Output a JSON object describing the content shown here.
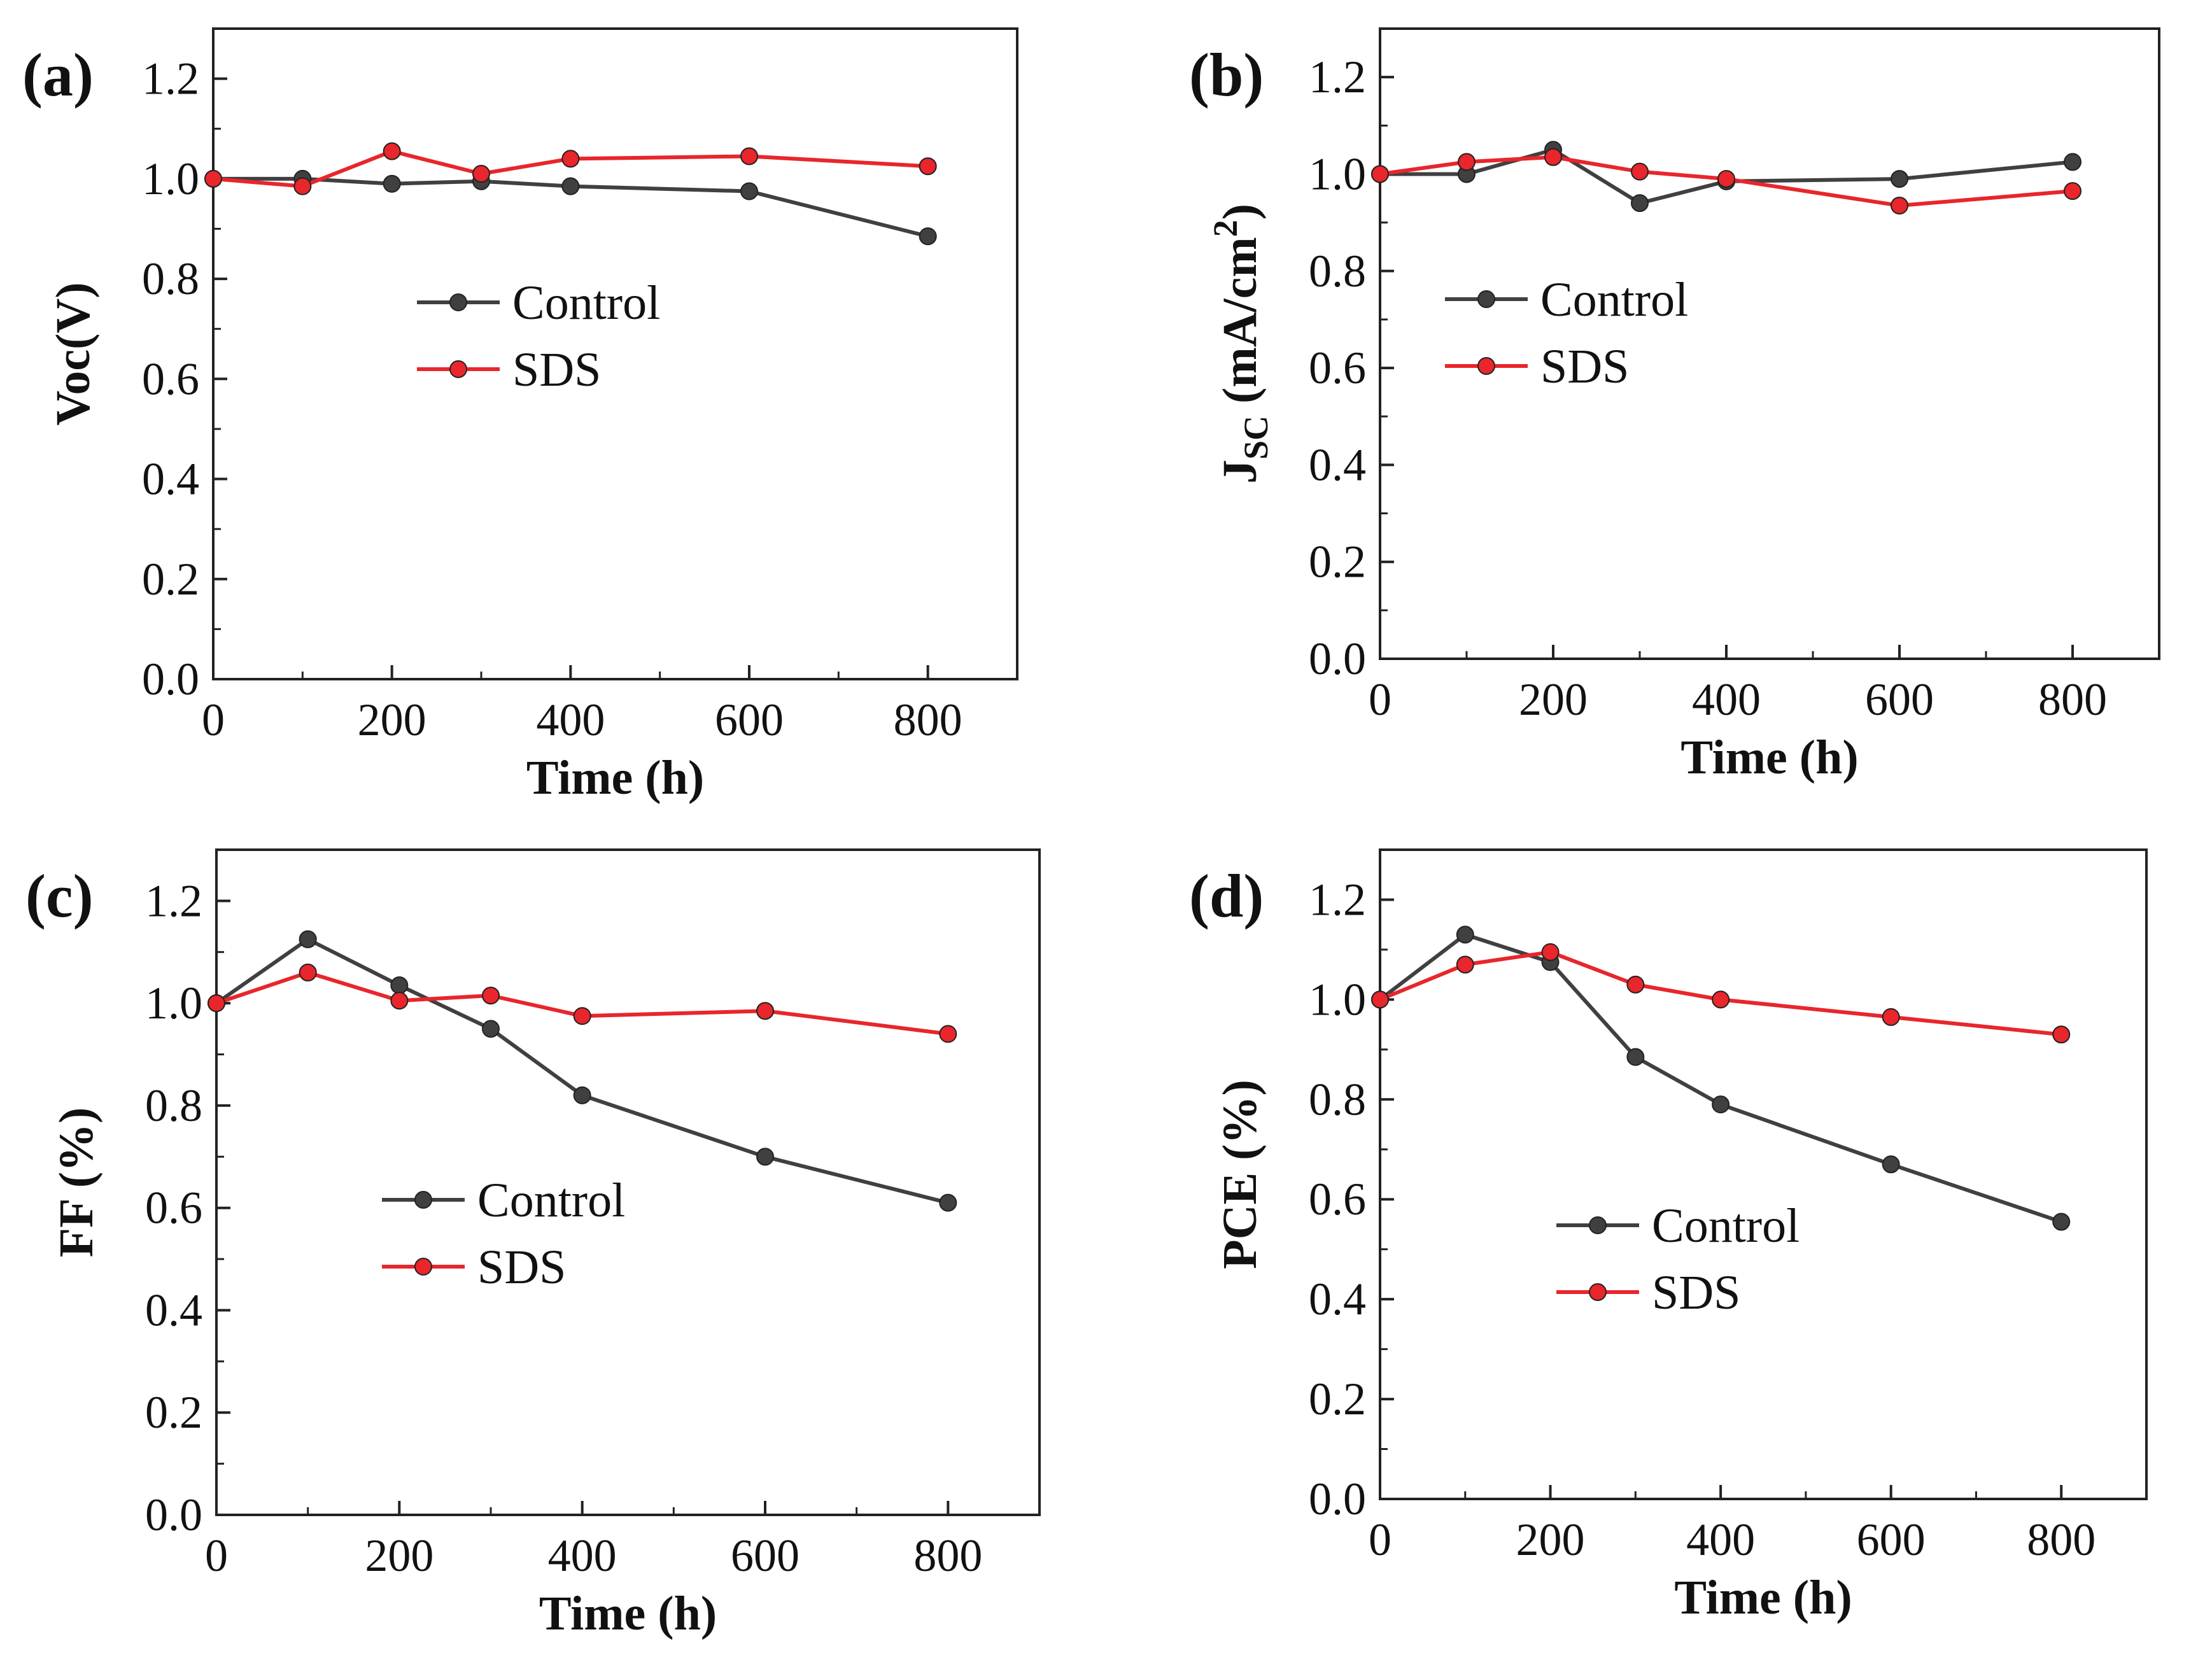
{
  "chart_data": [
    {
      "type": "line",
      "panel_label": "(a)",
      "xlabel": "Time (h)",
      "ylabel": "Voc(V)",
      "xlim": [
        0,
        900
      ],
      "ylim": [
        0,
        1.3
      ],
      "xticks": [
        0,
        200,
        400,
        600,
        800
      ],
      "xtick_labels": [
        "0",
        "200",
        "400",
        "600",
        "800"
      ],
      "yticks": [
        0,
        0.2,
        0.4,
        0.6,
        0.8,
        1.0,
        1.2
      ],
      "ytick_labels": [
        "0.0",
        "0.2",
        "0.4",
        "0.6",
        "0.8",
        "1.0",
        "1.2"
      ],
      "legend_position": "center",
      "x": [
        0,
        100,
        200,
        300,
        400,
        600,
        800
      ],
      "series": [
        {
          "name": "Control",
          "color": "#404040",
          "values": [
            1.0,
            1.0,
            0.99,
            0.995,
            0.985,
            0.975,
            0.885
          ]
        },
        {
          "name": "SDS",
          "color": "#e8262b",
          "values": [
            1.0,
            0.985,
            1.055,
            1.01,
            1.04,
            1.045,
            1.025
          ]
        }
      ]
    },
    {
      "type": "line",
      "panel_label": "(b)",
      "xlabel": "Time (h)",
      "ylabel": "J",
      "ylabel_sub": "SC",
      "ylabel_rest": " (mA/cm",
      "ylabel_sup": "2",
      "ylabel_end": ")",
      "xlim": [
        0,
        900
      ],
      "ylim": [
        0,
        1.3
      ],
      "xticks": [
        0,
        200,
        400,
        600,
        800
      ],
      "xtick_labels": [
        "0",
        "200",
        "400",
        "600",
        "800"
      ],
      "yticks": [
        0,
        0.2,
        0.4,
        0.6,
        0.8,
        1.0,
        1.2
      ],
      "ytick_labels": [
        "0.0",
        "0.2",
        "0.4",
        "0.6",
        "0.8",
        "1.0",
        "1.2"
      ],
      "legend_position": "center",
      "x": [
        0,
        100,
        200,
        300,
        400,
        600,
        800
      ],
      "series": [
        {
          "name": "Control",
          "color": "#404040",
          "values": [
            1.0,
            1.0,
            1.05,
            0.94,
            0.985,
            0.99,
            1.025
          ]
        },
        {
          "name": "SDS",
          "color": "#e8262b",
          "values": [
            1.0,
            1.025,
            1.035,
            1.005,
            0.99,
            0.935,
            0.965
          ]
        }
      ]
    },
    {
      "type": "line",
      "panel_label": "(c)",
      "xlabel": "Time (h)",
      "ylabel": "FF (%)",
      "xlim": [
        0,
        900
      ],
      "ylim": [
        0,
        1.3
      ],
      "xticks": [
        0,
        200,
        400,
        600,
        800
      ],
      "xtick_labels": [
        "0",
        "200",
        "400",
        "600",
        "800"
      ],
      "yticks": [
        0,
        0.2,
        0.4,
        0.6,
        0.8,
        1.0,
        1.2
      ],
      "ytick_labels": [
        "0.0",
        "0.2",
        "0.4",
        "0.6",
        "0.8",
        "1.0",
        "1.2"
      ],
      "legend_position": "center",
      "x": [
        0,
        100,
        200,
        300,
        400,
        600,
        800
      ],
      "series": [
        {
          "name": "Control",
          "color": "#404040",
          "values": [
            1.0,
            1.125,
            1.035,
            0.95,
            0.82,
            0.7,
            0.61
          ]
        },
        {
          "name": "SDS",
          "color": "#e8262b",
          "values": [
            1.0,
            1.06,
            1.005,
            1.015,
            0.975,
            0.985,
            0.94
          ]
        }
      ]
    },
    {
      "type": "line",
      "panel_label": "(d)",
      "xlabel": "Time (h)",
      "ylabel": "PCE (%)",
      "xlim": [
        0,
        900
      ],
      "ylim": [
        0,
        1.3
      ],
      "xticks": [
        0,
        200,
        400,
        600,
        800
      ],
      "xtick_labels": [
        "0",
        "200",
        "400",
        "600",
        "800"
      ],
      "yticks": [
        0,
        0.2,
        0.4,
        0.6,
        0.8,
        1.0,
        1.2
      ],
      "ytick_labels": [
        "0.0",
        "0.2",
        "0.4",
        "0.6",
        "0.8",
        "1.0",
        "1.2"
      ],
      "legend_position": "lower-center",
      "x": [
        0,
        100,
        200,
        300,
        400,
        600,
        800
      ],
      "series": [
        {
          "name": "Control",
          "color": "#404040",
          "values": [
            1.0,
            1.13,
            1.075,
            0.885,
            0.79,
            0.67,
            0.555
          ]
        },
        {
          "name": "SDS",
          "color": "#e8262b",
          "values": [
            1.0,
            1.07,
            1.095,
            1.03,
            1.0,
            0.965,
            0.93
          ]
        }
      ]
    }
  ]
}
